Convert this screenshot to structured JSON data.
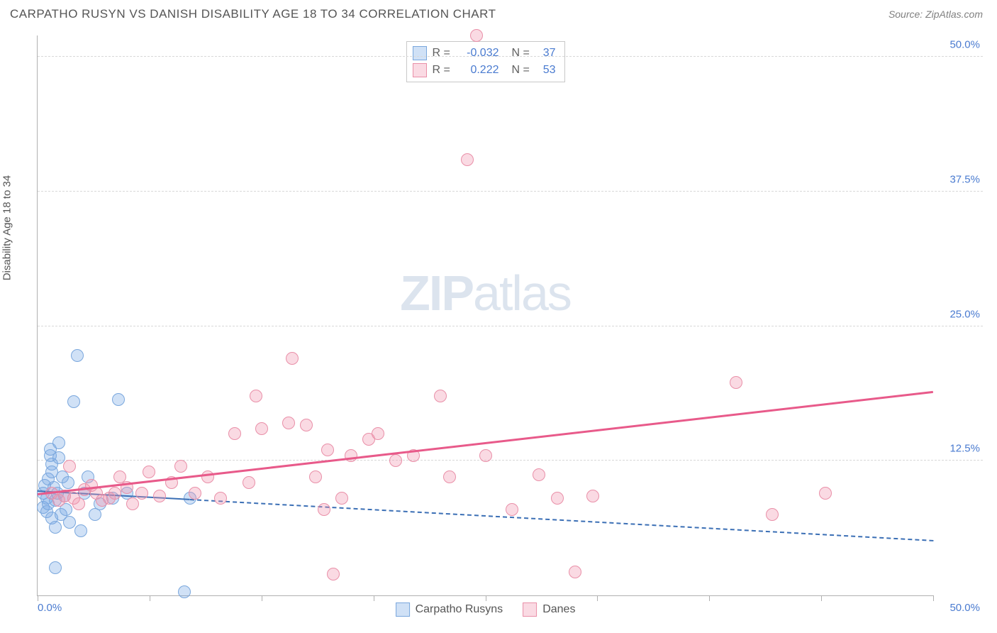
{
  "header": {
    "title": "CARPATHO RUSYN VS DANISH DISABILITY AGE 18 TO 34 CORRELATION CHART",
    "source": "Source: ZipAtlas.com"
  },
  "watermark": {
    "bold": "ZIP",
    "light": "atlas"
  },
  "chart": {
    "type": "scatter",
    "ylabel": "Disability Age 18 to 34",
    "xlim": [
      0,
      50
    ],
    "ylim": [
      0,
      52
    ],
    "xtick_positions": [
      0,
      6.25,
      12.5,
      18.75,
      25,
      31.25,
      37.5,
      43.75,
      50
    ],
    "x_axis_labels": {
      "min": "0.0%",
      "max": "50.0%"
    },
    "y_gridlines": [
      {
        "v": 12.5,
        "label": "12.5%"
      },
      {
        "v": 25.0,
        "label": "25.0%"
      },
      {
        "v": 37.5,
        "label": "37.5%"
      },
      {
        "v": 50.0,
        "label": "50.0%"
      }
    ],
    "background_color": "#ffffff",
    "grid_color": "#d8d8d8",
    "axis_color": "#b0b0b0",
    "tick_label_color": "#4a7bd0",
    "marker_radius": 9,
    "marker_stroke_width": 1.5,
    "series": [
      {
        "key": "carpatho",
        "label": "Carpatho Rusyns",
        "fill": "rgba(120,170,230,0.35)",
        "stroke": "#7aa7dd",
        "r": -0.032,
        "n": 37,
        "trend": {
          "x1": 0,
          "y1": 9.6,
          "x2": 50,
          "y2": 5.0,
          "solid_until_x": 8.5,
          "color": "#3b6fb5",
          "width": 2.5
        },
        "points": [
          [
            0.3,
            9.5
          ],
          [
            0.3,
            8.2
          ],
          [
            0.4,
            10.2
          ],
          [
            0.5,
            9.0
          ],
          [
            0.5,
            7.8
          ],
          [
            0.6,
            10.8
          ],
          [
            0.6,
            8.5
          ],
          [
            0.7,
            13.0
          ],
          [
            0.7,
            13.6
          ],
          [
            0.8,
            12.2
          ],
          [
            0.8,
            11.5
          ],
          [
            0.8,
            7.2
          ],
          [
            0.9,
            10.0
          ],
          [
            1.0,
            6.3
          ],
          [
            1.0,
            8.8
          ],
          [
            1.1,
            9.5
          ],
          [
            1.2,
            12.8
          ],
          [
            1.2,
            14.2
          ],
          [
            1.3,
            7.5
          ],
          [
            1.4,
            11.0
          ],
          [
            1.5,
            9.2
          ],
          [
            1.6,
            8.0
          ],
          [
            1.7,
            10.5
          ],
          [
            1.8,
            6.8
          ],
          [
            1.0,
            2.6
          ],
          [
            2.0,
            18.0
          ],
          [
            2.2,
            22.3
          ],
          [
            2.4,
            6.0
          ],
          [
            2.6,
            9.5
          ],
          [
            2.8,
            11.0
          ],
          [
            3.2,
            7.5
          ],
          [
            3.5,
            8.5
          ],
          [
            4.2,
            9.0
          ],
          [
            4.5,
            18.2
          ],
          [
            5.0,
            9.5
          ],
          [
            8.2,
            0.3
          ],
          [
            8.5,
            9.0
          ]
        ]
      },
      {
        "key": "danes",
        "label": "Danes",
        "fill": "rgba(240,150,175,0.35)",
        "stroke": "#e98fa8",
        "r": 0.222,
        "n": 53,
        "trend": {
          "x1": 0,
          "y1": 9.3,
          "x2": 50,
          "y2": 18.8,
          "solid_until_x": 50,
          "color": "#e85a8a",
          "width": 3
        },
        "points": [
          [
            0.8,
            9.5
          ],
          [
            1.2,
            8.8
          ],
          [
            1.5,
            9.2
          ],
          [
            1.8,
            12.0
          ],
          [
            2.0,
            9.0
          ],
          [
            2.3,
            8.5
          ],
          [
            2.6,
            9.8
          ],
          [
            3.0,
            10.2
          ],
          [
            3.3,
            9.5
          ],
          [
            3.6,
            8.8
          ],
          [
            4.0,
            9.0
          ],
          [
            4.3,
            9.5
          ],
          [
            4.6,
            11.0
          ],
          [
            5.0,
            10.0
          ],
          [
            5.3,
            8.5
          ],
          [
            5.8,
            9.5
          ],
          [
            6.2,
            11.5
          ],
          [
            6.8,
            9.2
          ],
          [
            7.5,
            10.5
          ],
          [
            8.0,
            12.0
          ],
          [
            8.8,
            9.5
          ],
          [
            9.5,
            11.0
          ],
          [
            10.2,
            9.0
          ],
          [
            11.0,
            15.0
          ],
          [
            11.8,
            10.5
          ],
          [
            12.2,
            18.5
          ],
          [
            12.5,
            15.5
          ],
          [
            14.0,
            16.0
          ],
          [
            14.2,
            22.0
          ],
          [
            15.0,
            15.8
          ],
          [
            15.5,
            11.0
          ],
          [
            16.0,
            8.0
          ],
          [
            16.2,
            13.5
          ],
          [
            16.5,
            2.0
          ],
          [
            17.0,
            9.0
          ],
          [
            17.5,
            13.0
          ],
          [
            18.5,
            14.5
          ],
          [
            19.0,
            15.0
          ],
          [
            20.0,
            12.5
          ],
          [
            21.0,
            13.0
          ],
          [
            22.5,
            18.5
          ],
          [
            23.0,
            11.0
          ],
          [
            24.0,
            40.5
          ],
          [
            24.5,
            52.0
          ],
          [
            25.0,
            13.0
          ],
          [
            26.5,
            8.0
          ],
          [
            28.0,
            11.2
          ],
          [
            29.0,
            9.0
          ],
          [
            30.0,
            2.2
          ],
          [
            31.0,
            9.2
          ],
          [
            39.0,
            19.8
          ],
          [
            41.0,
            7.5
          ],
          [
            44.0,
            9.5
          ]
        ]
      }
    ]
  },
  "legend_top": {
    "r_label": "R =",
    "n_label": "N ="
  }
}
